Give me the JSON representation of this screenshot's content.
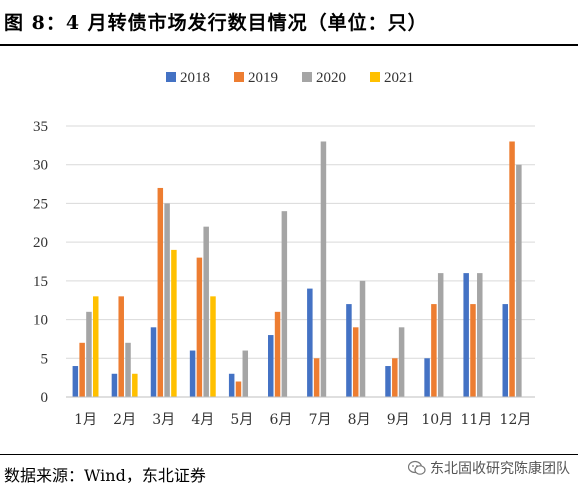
{
  "header": {
    "title": "图 8：4 月转债市场发行数目情况（单位：只）"
  },
  "footer": {
    "source": "数据来源：Wind，东北证券",
    "watermark": "东北固收研究陈康团队"
  },
  "colors": {
    "2018": "#4472C4",
    "2019": "#ED7D31",
    "2020": "#A5A5A5",
    "2021": "#FFC000",
    "gridline": "#D9D9D9",
    "axis": "#BFBFBF"
  },
  "chart_data": {
    "type": "bar",
    "title": "",
    "xlabel": "",
    "ylabel": "",
    "ylim": [
      0,
      35
    ],
    "yticks": [
      0,
      5,
      10,
      15,
      20,
      25,
      30,
      35
    ],
    "grid": true,
    "legend_position": "top-center",
    "categories": [
      "1月",
      "2月",
      "3月",
      "4月",
      "5月",
      "6月",
      "7月",
      "8月",
      "9月",
      "10月",
      "11月",
      "12月"
    ],
    "series": [
      {
        "name": "2018",
        "values": [
          4,
          3,
          9,
          6,
          3,
          8,
          14,
          12,
          4,
          5,
          16,
          12
        ]
      },
      {
        "name": "2019",
        "values": [
          7,
          13,
          27,
          18,
          2,
          11,
          5,
          9,
          5,
          12,
          12,
          33
        ]
      },
      {
        "name": "2020",
        "values": [
          11,
          7,
          25,
          22,
          6,
          24,
          33,
          15,
          9,
          16,
          16,
          30
        ]
      },
      {
        "name": "2021",
        "values": [
          13,
          3,
          19,
          13,
          null,
          null,
          null,
          null,
          null,
          null,
          null,
          null
        ]
      }
    ]
  }
}
